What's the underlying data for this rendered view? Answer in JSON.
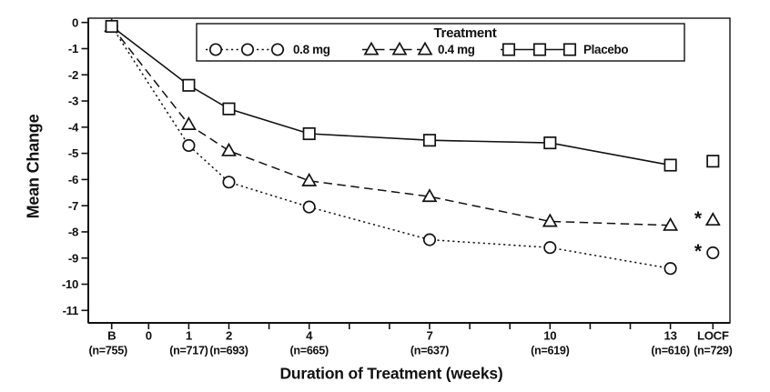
{
  "figure": {
    "background": "#ffffff",
    "ink": "#111111"
  },
  "chart_data": {
    "type": "line",
    "title": "",
    "xlabel": "Duration of Treatment (weeks)",
    "ylabel": "Mean Change",
    "x_axis": {
      "label": "Duration of Treatment (weeks)",
      "ticks": [
        "B",
        "0",
        "1",
        "2",
        "3",
        "4",
        "5",
        "6",
        "7",
        "8",
        "9",
        "10",
        "11",
        "12",
        "13",
        "LOCF"
      ],
      "labeled_ticks": [
        "B",
        "0",
        "1",
        "2",
        "4",
        "7",
        "10",
        "13",
        "LOCF"
      ],
      "n_labels": [
        {
          "tick": "B",
          "text": "(n=755)"
        },
        {
          "tick": "1",
          "text": "(n=717)"
        },
        {
          "tick": "2",
          "text": "(n=693)"
        },
        {
          "tick": "4",
          "text": "(n=665)"
        },
        {
          "tick": "7",
          "text": "(n=637)"
        },
        {
          "tick": "10",
          "text": "(n=619)"
        },
        {
          "tick": "13",
          "text": "(n=616)"
        },
        {
          "tick": "LOCF",
          "text": "(n=729)"
        }
      ]
    },
    "y_axis": {
      "label": "Mean Change",
      "ticks": [
        0,
        -1,
        -2,
        -3,
        -4,
        -5,
        -6,
        -7,
        -8,
        -9,
        -10,
        -11
      ],
      "range": [
        -11,
        0
      ]
    },
    "legend": {
      "title": "Treatment",
      "position": "top-inside",
      "entries": [
        "0.8 mg",
        "0.4 mg",
        "Placebo"
      ]
    },
    "series": [
      {
        "name": "0.8 mg",
        "marker": "circle",
        "line_style": "dotted",
        "x": [
          "B",
          "1",
          "2",
          "4",
          "7",
          "10",
          "13"
        ],
        "values": [
          -0.15,
          -4.7,
          -6.1,
          -7.05,
          -8.3,
          -8.6,
          -9.4
        ],
        "locf_value": -8.8,
        "locf_flag": "*"
      },
      {
        "name": "0.4 mg",
        "marker": "triangle",
        "line_style": "dashed",
        "x": [
          "B",
          "1",
          "2",
          "4",
          "7",
          "10",
          "13"
        ],
        "values": [
          -0.15,
          -3.9,
          -4.9,
          -6.05,
          -6.65,
          -7.6,
          -7.75
        ],
        "locf_value": -7.55,
        "locf_flag": "*"
      },
      {
        "name": "Placebo",
        "marker": "square",
        "line_style": "solid",
        "x": [
          "B",
          "1",
          "2",
          "4",
          "7",
          "10",
          "13"
        ],
        "values": [
          -0.15,
          -2.4,
          -3.3,
          -4.25,
          -4.5,
          -4.6,
          -5.45
        ],
        "locf_value": -5.3,
        "locf_flag": ""
      }
    ]
  }
}
